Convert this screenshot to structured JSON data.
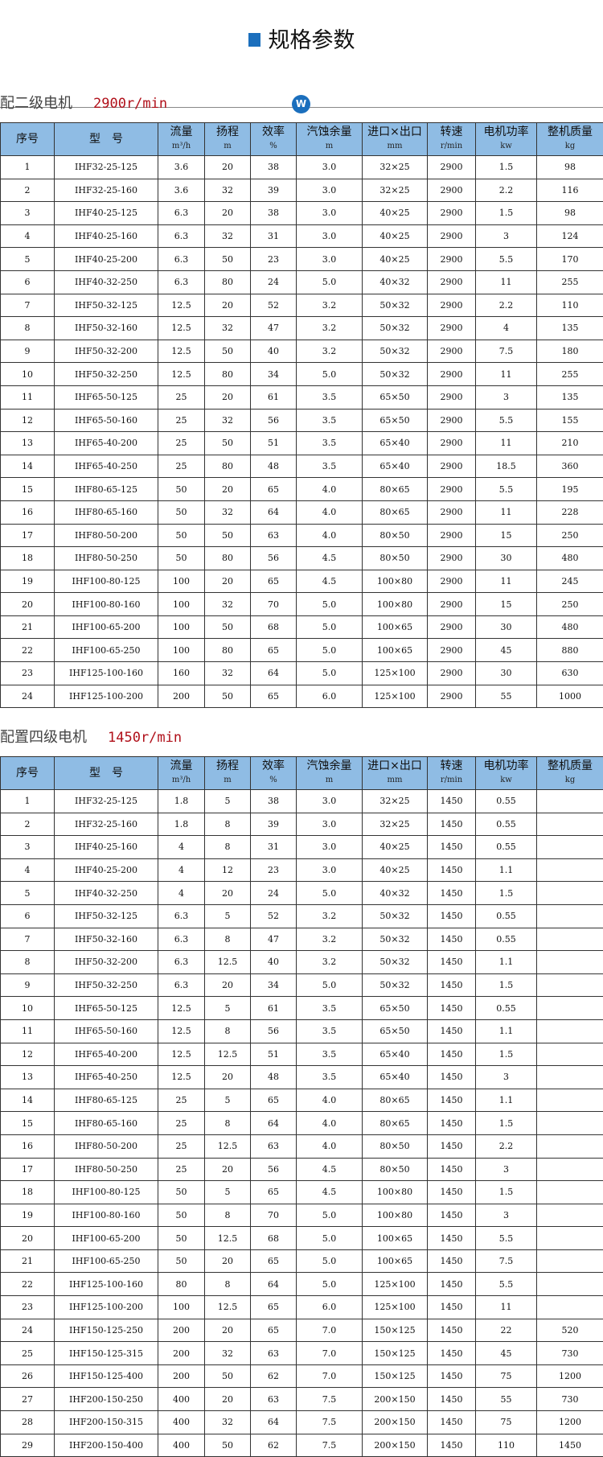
{
  "page_title": "规格参数",
  "badge": "W",
  "columns": [
    {
      "label": "序号",
      "unit": ""
    },
    {
      "label": "型　号",
      "unit": ""
    },
    {
      "label": "流量",
      "unit": "m³/h"
    },
    {
      "label": "扬程",
      "unit": "m"
    },
    {
      "label": "效率",
      "unit": "%"
    },
    {
      "label": "汽蚀余量",
      "unit": "m"
    },
    {
      "label": "进口×出口",
      "unit": "mm"
    },
    {
      "label": "转速",
      "unit": "r/min"
    },
    {
      "label": "电机功率",
      "unit": "kw"
    },
    {
      "label": "整机质量",
      "unit": "kg"
    }
  ],
  "tables": [
    {
      "heading": "配二级电机",
      "speed": "2900r/min",
      "rows": [
        [
          "1",
          "IHF32-25-125",
          "3.6",
          "20",
          "38",
          "3.0",
          "32×25",
          "2900",
          "1.5",
          "98"
        ],
        [
          "2",
          "IHF32-25-160",
          "3.6",
          "32",
          "39",
          "3.0",
          "32×25",
          "2900",
          "2.2",
          "116"
        ],
        [
          "3",
          "IHF40-25-125",
          "6.3",
          "20",
          "38",
          "3.0",
          "40×25",
          "2900",
          "1.5",
          "98"
        ],
        [
          "4",
          "IHF40-25-160",
          "6.3",
          "32",
          "31",
          "3.0",
          "40×25",
          "2900",
          "3",
          "124"
        ],
        [
          "5",
          "IHF40-25-200",
          "6.3",
          "50",
          "23",
          "3.0",
          "40×25",
          "2900",
          "5.5",
          "170"
        ],
        [
          "6",
          "IHF40-32-250",
          "6.3",
          "80",
          "24",
          "5.0",
          "40×32",
          "2900",
          "11",
          "255"
        ],
        [
          "7",
          "IHF50-32-125",
          "12.5",
          "20",
          "52",
          "3.2",
          "50×32",
          "2900",
          "2.2",
          "110"
        ],
        [
          "8",
          "IHF50-32-160",
          "12.5",
          "32",
          "47",
          "3.2",
          "50×32",
          "2900",
          "4",
          "135"
        ],
        [
          "9",
          "IHF50-32-200",
          "12.5",
          "50",
          "40",
          "3.2",
          "50×32",
          "2900",
          "7.5",
          "180"
        ],
        [
          "10",
          "IHF50-32-250",
          "12.5",
          "80",
          "34",
          "5.0",
          "50×32",
          "2900",
          "11",
          "255"
        ],
        [
          "11",
          "IHF65-50-125",
          "25",
          "20",
          "61",
          "3.5",
          "65×50",
          "2900",
          "3",
          "135"
        ],
        [
          "12",
          "IHF65-50-160",
          "25",
          "32",
          "56",
          "3.5",
          "65×50",
          "2900",
          "5.5",
          "155"
        ],
        [
          "13",
          "IHF65-40-200",
          "25",
          "50",
          "51",
          "3.5",
          "65×40",
          "2900",
          "11",
          "210"
        ],
        [
          "14",
          "IHF65-40-250",
          "25",
          "80",
          "48",
          "3.5",
          "65×40",
          "2900",
          "18.5",
          "360"
        ],
        [
          "15",
          "IHF80-65-125",
          "50",
          "20",
          "65",
          "4.0",
          "80×65",
          "2900",
          "5.5",
          "195"
        ],
        [
          "16",
          "IHF80-65-160",
          "50",
          "32",
          "64",
          "4.0",
          "80×65",
          "2900",
          "11",
          "228"
        ],
        [
          "17",
          "IHF80-50-200",
          "50",
          "50",
          "63",
          "4.0",
          "80×50",
          "2900",
          "15",
          "250"
        ],
        [
          "18",
          "IHF80-50-250",
          "50",
          "80",
          "56",
          "4.5",
          "80×50",
          "2900",
          "30",
          "480"
        ],
        [
          "19",
          "IHF100-80-125",
          "100",
          "20",
          "65",
          "4.5",
          "100×80",
          "2900",
          "11",
          "245"
        ],
        [
          "20",
          "IHF100-80-160",
          "100",
          "32",
          "70",
          "5.0",
          "100×80",
          "2900",
          "15",
          "250"
        ],
        [
          "21",
          "IHF100-65-200",
          "100",
          "50",
          "68",
          "5.0",
          "100×65",
          "2900",
          "30",
          "480"
        ],
        [
          "22",
          "IHF100-65-250",
          "100",
          "80",
          "65",
          "5.0",
          "100×65",
          "2900",
          "45",
          "880"
        ],
        [
          "23",
          "IHF125-100-160",
          "160",
          "32",
          "64",
          "5.0",
          "125×100",
          "2900",
          "30",
          "630"
        ],
        [
          "24",
          "IHF125-100-200",
          "200",
          "50",
          "65",
          "6.0",
          "125×100",
          "2900",
          "55",
          "1000"
        ]
      ]
    },
    {
      "heading": "配置四级电机",
      "speed": "1450r/min",
      "rows": [
        [
          "1",
          "IHF32-25-125",
          "1.8",
          "5",
          "38",
          "3.0",
          "32×25",
          "1450",
          "0.55",
          ""
        ],
        [
          "2",
          "IHF32-25-160",
          "1.8",
          "8",
          "39",
          "3.0",
          "32×25",
          "1450",
          "0.55",
          ""
        ],
        [
          "3",
          "IHF40-25-160",
          "4",
          "8",
          "31",
          "3.0",
          "40×25",
          "1450",
          "0.55",
          ""
        ],
        [
          "4",
          "IHF40-25-200",
          "4",
          "12",
          "23",
          "3.0",
          "40×25",
          "1450",
          "1.1",
          ""
        ],
        [
          "5",
          "IHF40-32-250",
          "4",
          "20",
          "24",
          "5.0",
          "40×32",
          "1450",
          "1.5",
          ""
        ],
        [
          "6",
          "IHF50-32-125",
          "6.3",
          "5",
          "52",
          "3.2",
          "50×32",
          "1450",
          "0.55",
          ""
        ],
        [
          "7",
          "IHF50-32-160",
          "6.3",
          "8",
          "47",
          "3.2",
          "50×32",
          "1450",
          "0.55",
          ""
        ],
        [
          "8",
          "IHF50-32-200",
          "6.3",
          "12.5",
          "40",
          "3.2",
          "50×32",
          "1450",
          "1.1",
          ""
        ],
        [
          "9",
          "IHF50-32-250",
          "6.3",
          "20",
          "34",
          "5.0",
          "50×32",
          "1450",
          "1.5",
          ""
        ],
        [
          "10",
          "IHF65-50-125",
          "12.5",
          "5",
          "61",
          "3.5",
          "65×50",
          "1450",
          "0.55",
          ""
        ],
        [
          "11",
          "IHF65-50-160",
          "12.5",
          "8",
          "56",
          "3.5",
          "65×50",
          "1450",
          "1.1",
          ""
        ],
        [
          "12",
          "IHF65-40-200",
          "12.5",
          "12.5",
          "51",
          "3.5",
          "65×40",
          "1450",
          "1.5",
          ""
        ],
        [
          "13",
          "IHF65-40-250",
          "12.5",
          "20",
          "48",
          "3.5",
          "65×40",
          "1450",
          "3",
          ""
        ],
        [
          "14",
          "IHF80-65-125",
          "25",
          "5",
          "65",
          "4.0",
          "80×65",
          "1450",
          "1.1",
          ""
        ],
        [
          "15",
          "IHF80-65-160",
          "25",
          "8",
          "64",
          "4.0",
          "80×65",
          "1450",
          "1.5",
          ""
        ],
        [
          "16",
          "IHF80-50-200",
          "25",
          "12.5",
          "63",
          "4.0",
          "80×50",
          "1450",
          "2.2",
          ""
        ],
        [
          "17",
          "IHF80-50-250",
          "25",
          "20",
          "56",
          "4.5",
          "80×50",
          "1450",
          "3",
          ""
        ],
        [
          "18",
          "IHF100-80-125",
          "50",
          "5",
          "65",
          "4.5",
          "100×80",
          "1450",
          "1.5",
          ""
        ],
        [
          "19",
          "IHF100-80-160",
          "50",
          "8",
          "70",
          "5.0",
          "100×80",
          "1450",
          "3",
          ""
        ],
        [
          "20",
          "IHF100-65-200",
          "50",
          "12.5",
          "68",
          "5.0",
          "100×65",
          "1450",
          "5.5",
          ""
        ],
        [
          "21",
          "IHF100-65-250",
          "50",
          "20",
          "65",
          "5.0",
          "100×65",
          "1450",
          "7.5",
          ""
        ],
        [
          "22",
          "IHF125-100-160",
          "80",
          "8",
          "64",
          "5.0",
          "125×100",
          "1450",
          "5.5",
          ""
        ],
        [
          "23",
          "IHF125-100-200",
          "100",
          "12.5",
          "65",
          "6.0",
          "125×100",
          "1450",
          "11",
          ""
        ],
        [
          "24",
          "IHF150-125-250",
          "200",
          "20",
          "65",
          "7.0",
          "150×125",
          "1450",
          "22",
          "520"
        ],
        [
          "25",
          "IHF150-125-315",
          "200",
          "32",
          "63",
          "7.0",
          "150×125",
          "1450",
          "45",
          "730"
        ],
        [
          "26",
          "IHF150-125-400",
          "200",
          "50",
          "62",
          "7.0",
          "150×125",
          "1450",
          "75",
          "1200"
        ],
        [
          "27",
          "IHF200-150-250",
          "400",
          "20",
          "63",
          "7.5",
          "200×150",
          "1450",
          "55",
          "730"
        ],
        [
          "28",
          "IHF200-150-315",
          "400",
          "32",
          "64",
          "7.5",
          "200×150",
          "1450",
          "75",
          "1200"
        ],
        [
          "29",
          "IHF200-150-400",
          "400",
          "50",
          "62",
          "7.5",
          "200×150",
          "1450",
          "110",
          "1450"
        ]
      ]
    }
  ],
  "colors": {
    "accent": "#1b6fbd",
    "header_bg": "#8fbce4",
    "speed_text": "#b0101a"
  }
}
